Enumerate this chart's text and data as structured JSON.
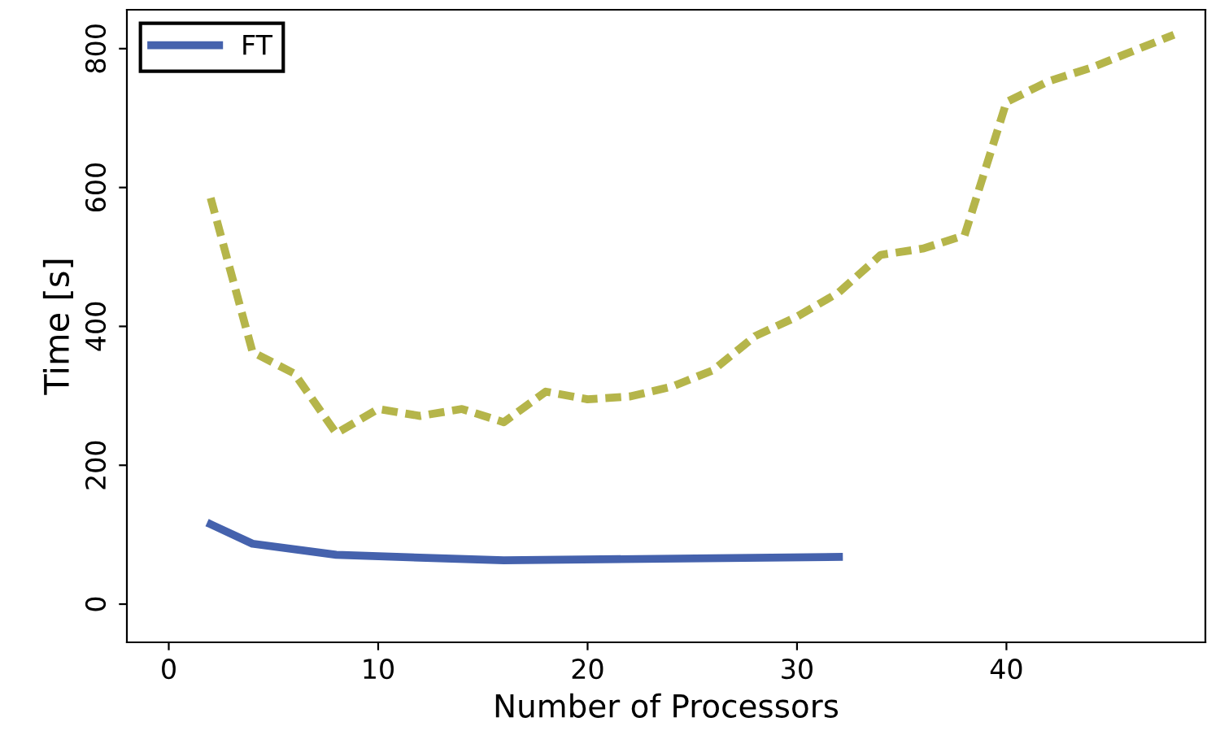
{
  "chart_data": {
    "type": "line",
    "xlabel": "Number of Processors",
    "ylabel": "Time [s]",
    "xlim": [
      -2,
      49.5
    ],
    "ylim": [
      -55,
      856
    ],
    "xticks": [
      0,
      10,
      20,
      30,
      40
    ],
    "yticks": [
      0,
      200,
      400,
      600,
      800
    ],
    "legend": "top left",
    "grid": false,
    "series": [
      {
        "name": "FT",
        "color": "#4562ad",
        "line_style": "solid",
        "x": [
          2,
          4,
          8,
          16,
          32
        ],
        "values": [
          115,
          87,
          71,
          63,
          68
        ]
      },
      {
        "color": "#b5b54a",
        "line_style": "dashed",
        "x": [
          2,
          4,
          6,
          8,
          10,
          12,
          14,
          16,
          18,
          20,
          22,
          24,
          26,
          28,
          30,
          32,
          34,
          36,
          38,
          40,
          42,
          44,
          46,
          48
        ],
        "values": [
          585,
          363,
          332,
          246,
          281,
          271,
          281,
          262,
          306,
          295,
          299,
          313,
          337,
          386,
          414,
          449,
          503,
          512,
          531,
          723,
          753,
          772,
          796,
          820
        ]
      }
    ]
  }
}
